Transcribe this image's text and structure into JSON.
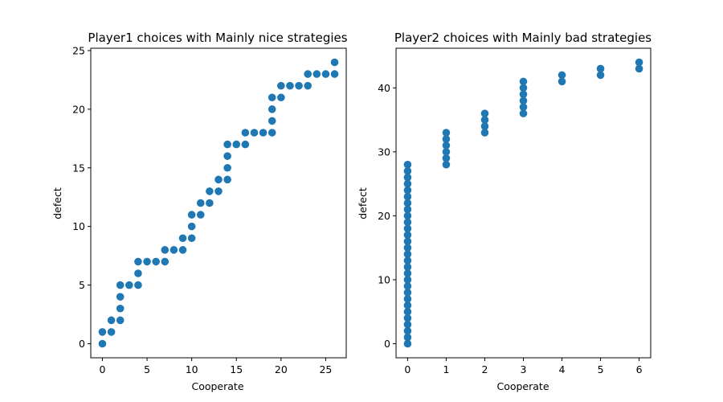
{
  "chart_data": [
    {
      "type": "scatter",
      "title": "Player1 choices with Mainly nice strategies",
      "xlabel": "Cooperate",
      "ylabel": "defect",
      "xlim": [
        -1.3,
        27.3
      ],
      "ylim": [
        -1.2,
        25.2
      ],
      "xticks": [
        0,
        5,
        10,
        15,
        20,
        25
      ],
      "yticks": [
        0,
        5,
        10,
        15,
        20,
        25
      ],
      "grid": false,
      "color": "#1f77b4",
      "points": [
        [
          0,
          0
        ],
        [
          0,
          1
        ],
        [
          1,
          1
        ],
        [
          1,
          2
        ],
        [
          2,
          2
        ],
        [
          2,
          3
        ],
        [
          2,
          4
        ],
        [
          2,
          5
        ],
        [
          3,
          5
        ],
        [
          4,
          5
        ],
        [
          4,
          6
        ],
        [
          4,
          7
        ],
        [
          5,
          7
        ],
        [
          6,
          7
        ],
        [
          7,
          7
        ],
        [
          7,
          8
        ],
        [
          8,
          8
        ],
        [
          9,
          8
        ],
        [
          9,
          9
        ],
        [
          10,
          9
        ],
        [
          10,
          10
        ],
        [
          10,
          11
        ],
        [
          11,
          11
        ],
        [
          11,
          12
        ],
        [
          12,
          12
        ],
        [
          12,
          13
        ],
        [
          13,
          13
        ],
        [
          13,
          14
        ],
        [
          14,
          14
        ],
        [
          14,
          15
        ],
        [
          14,
          16
        ],
        [
          14,
          17
        ],
        [
          15,
          17
        ],
        [
          16,
          17
        ],
        [
          16,
          18
        ],
        [
          17,
          18
        ],
        [
          18,
          18
        ],
        [
          19,
          18
        ],
        [
          19,
          19
        ],
        [
          19,
          20
        ],
        [
          19,
          21
        ],
        [
          20,
          21
        ],
        [
          20,
          22
        ],
        [
          21,
          22
        ],
        [
          22,
          22
        ],
        [
          23,
          22
        ],
        [
          23,
          23
        ],
        [
          24,
          23
        ],
        [
          25,
          23
        ],
        [
          26,
          23
        ],
        [
          26,
          24
        ]
      ]
    },
    {
      "type": "scatter",
      "title": "Player2 choices with Mainly bad strategies",
      "xlabel": "Cooperate",
      "ylabel": "defect",
      "xlim": [
        -0.3,
        6.3
      ],
      "ylim": [
        -2.2,
        46.2
      ],
      "xticks": [
        0,
        1,
        2,
        3,
        4,
        5,
        6
      ],
      "yticks": [
        0,
        10,
        20,
        30,
        40
      ],
      "grid": false,
      "color": "#1f77b4",
      "points": [
        [
          0,
          0
        ],
        [
          0,
          1
        ],
        [
          0,
          2
        ],
        [
          0,
          3
        ],
        [
          0,
          4
        ],
        [
          0,
          5
        ],
        [
          0,
          6
        ],
        [
          0,
          7
        ],
        [
          0,
          8
        ],
        [
          0,
          9
        ],
        [
          0,
          10
        ],
        [
          0,
          11
        ],
        [
          0,
          12
        ],
        [
          0,
          13
        ],
        [
          0,
          14
        ],
        [
          0,
          15
        ],
        [
          0,
          16
        ],
        [
          0,
          17
        ],
        [
          0,
          18
        ],
        [
          0,
          19
        ],
        [
          0,
          20
        ],
        [
          0,
          21
        ],
        [
          0,
          22
        ],
        [
          0,
          23
        ],
        [
          0,
          24
        ],
        [
          0,
          25
        ],
        [
          0,
          26
        ],
        [
          0,
          27
        ],
        [
          0,
          28
        ],
        [
          1,
          28
        ],
        [
          1,
          29
        ],
        [
          1,
          30
        ],
        [
          1,
          31
        ],
        [
          1,
          32
        ],
        [
          1,
          33
        ],
        [
          2,
          33
        ],
        [
          2,
          34
        ],
        [
          2,
          35
        ],
        [
          2,
          36
        ],
        [
          3,
          36
        ],
        [
          3,
          37
        ],
        [
          3,
          38
        ],
        [
          3,
          39
        ],
        [
          3,
          40
        ],
        [
          3,
          41
        ],
        [
          4,
          41
        ],
        [
          4,
          42
        ],
        [
          5,
          42
        ],
        [
          5,
          43
        ],
        [
          6,
          43
        ],
        [
          6,
          44
        ]
      ]
    }
  ]
}
